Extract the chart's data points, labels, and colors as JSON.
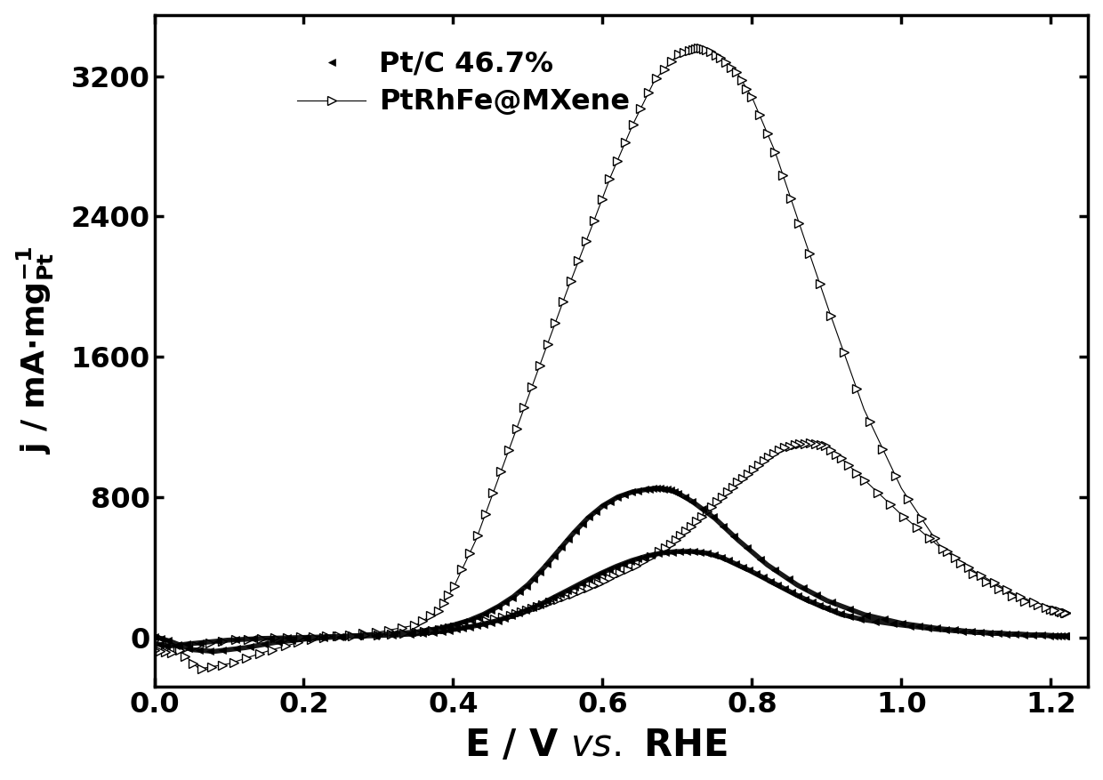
{
  "xlabel_normal": "E / V ",
  "xlabel_italic": "vs.",
  "xlabel_normal2": " RHE",
  "xlim": [
    0.0,
    1.25
  ],
  "ylim": [
    -280,
    3550
  ],
  "xticks": [
    0.0,
    0.2,
    0.4,
    0.6,
    0.8,
    1.0,
    1.2
  ],
  "yticks": [
    0,
    800,
    1600,
    2400,
    3200
  ],
  "background_color": "#ffffff",
  "label_ptc": "Pt/C 46.7%",
  "label_ptrh": "PtRhFe@MXene",
  "mxene_fwd_x": [
    0.0,
    0.03,
    0.06,
    0.1,
    0.15,
    0.2,
    0.25,
    0.3,
    0.35,
    0.38,
    0.4,
    0.43,
    0.46,
    0.49,
    0.52,
    0.55,
    0.58,
    0.61,
    0.64,
    0.67,
    0.7,
    0.72,
    0.73,
    0.74,
    0.76,
    0.78,
    0.8,
    0.83,
    0.86,
    0.9,
    0.95,
    1.0,
    1.05,
    1.1,
    1.15,
    1.2,
    1.22
  ],
  "mxene_fwd_y": [
    10,
    -60,
    -180,
    -150,
    -80,
    -20,
    10,
    30,
    70,
    150,
    280,
    550,
    900,
    1250,
    1600,
    1950,
    2280,
    2620,
    2920,
    3180,
    3320,
    3350,
    3360,
    3350,
    3300,
    3220,
    3080,
    2780,
    2400,
    1900,
    1300,
    850,
    530,
    350,
    230,
    160,
    140
  ],
  "mxene_rev_x": [
    1.22,
    1.2,
    1.15,
    1.1,
    1.05,
    1.0,
    0.95,
    0.92,
    0.9,
    0.88,
    0.86,
    0.84,
    0.82,
    0.8,
    0.78,
    0.76,
    0.74,
    0.72,
    0.7,
    0.68,
    0.65,
    0.62,
    0.6,
    0.58,
    0.55,
    0.52,
    0.5,
    0.48,
    0.45,
    0.42,
    0.4,
    0.38,
    0.35,
    0.3,
    0.25,
    0.2,
    0.15,
    0.1,
    0.05,
    0.02,
    0.0
  ],
  "mxene_rev_y": [
    140,
    160,
    250,
    370,
    520,
    700,
    900,
    1020,
    1090,
    1110,
    1100,
    1080,
    1020,
    950,
    880,
    800,
    720,
    640,
    560,
    500,
    420,
    360,
    320,
    280,
    230,
    185,
    155,
    130,
    100,
    75,
    58,
    45,
    30,
    15,
    8,
    3,
    -5,
    -15,
    -50,
    -90,
    -70
  ],
  "ptc_fwd_x": [
    0.0,
    0.02,
    0.05,
    0.08,
    0.12,
    0.16,
    0.2,
    0.25,
    0.3,
    0.35,
    0.38,
    0.4,
    0.42,
    0.44,
    0.46,
    0.48,
    0.5,
    0.52,
    0.54,
    0.56,
    0.58,
    0.6,
    0.62,
    0.64,
    0.66,
    0.67,
    0.68,
    0.69,
    0.7,
    0.72,
    0.75,
    0.78,
    0.82,
    0.86,
    0.9,
    0.95,
    1.0,
    1.05,
    1.1,
    1.15,
    1.2,
    1.22
  ],
  "ptc_fwd_y": [
    5,
    -20,
    -70,
    -80,
    -60,
    -30,
    -10,
    5,
    15,
    30,
    50,
    70,
    95,
    130,
    175,
    230,
    300,
    390,
    490,
    590,
    680,
    750,
    800,
    830,
    845,
    850,
    848,
    840,
    825,
    775,
    680,
    560,
    415,
    300,
    210,
    130,
    80,
    50,
    30,
    18,
    10,
    8
  ],
  "ptc_rev_x": [
    1.22,
    1.2,
    1.15,
    1.1,
    1.05,
    1.0,
    0.95,
    0.92,
    0.9,
    0.88,
    0.86,
    0.84,
    0.82,
    0.8,
    0.78,
    0.76,
    0.74,
    0.72,
    0.7,
    0.68,
    0.66,
    0.64,
    0.62,
    0.6,
    0.58,
    0.56,
    0.54,
    0.52,
    0.5,
    0.48,
    0.46,
    0.44,
    0.42,
    0.4,
    0.38,
    0.35,
    0.3,
    0.25,
    0.2,
    0.15,
    0.1,
    0.05,
    0.02,
    0.0
  ],
  "ptc_rev_y": [
    8,
    10,
    18,
    28,
    45,
    70,
    100,
    130,
    165,
    200,
    240,
    285,
    330,
    375,
    415,
    455,
    480,
    490,
    490,
    482,
    465,
    440,
    408,
    370,
    328,
    283,
    240,
    195,
    158,
    125,
    97,
    75,
    58,
    44,
    32,
    20,
    10,
    5,
    0,
    -5,
    -15,
    -35,
    -50,
    -35
  ]
}
